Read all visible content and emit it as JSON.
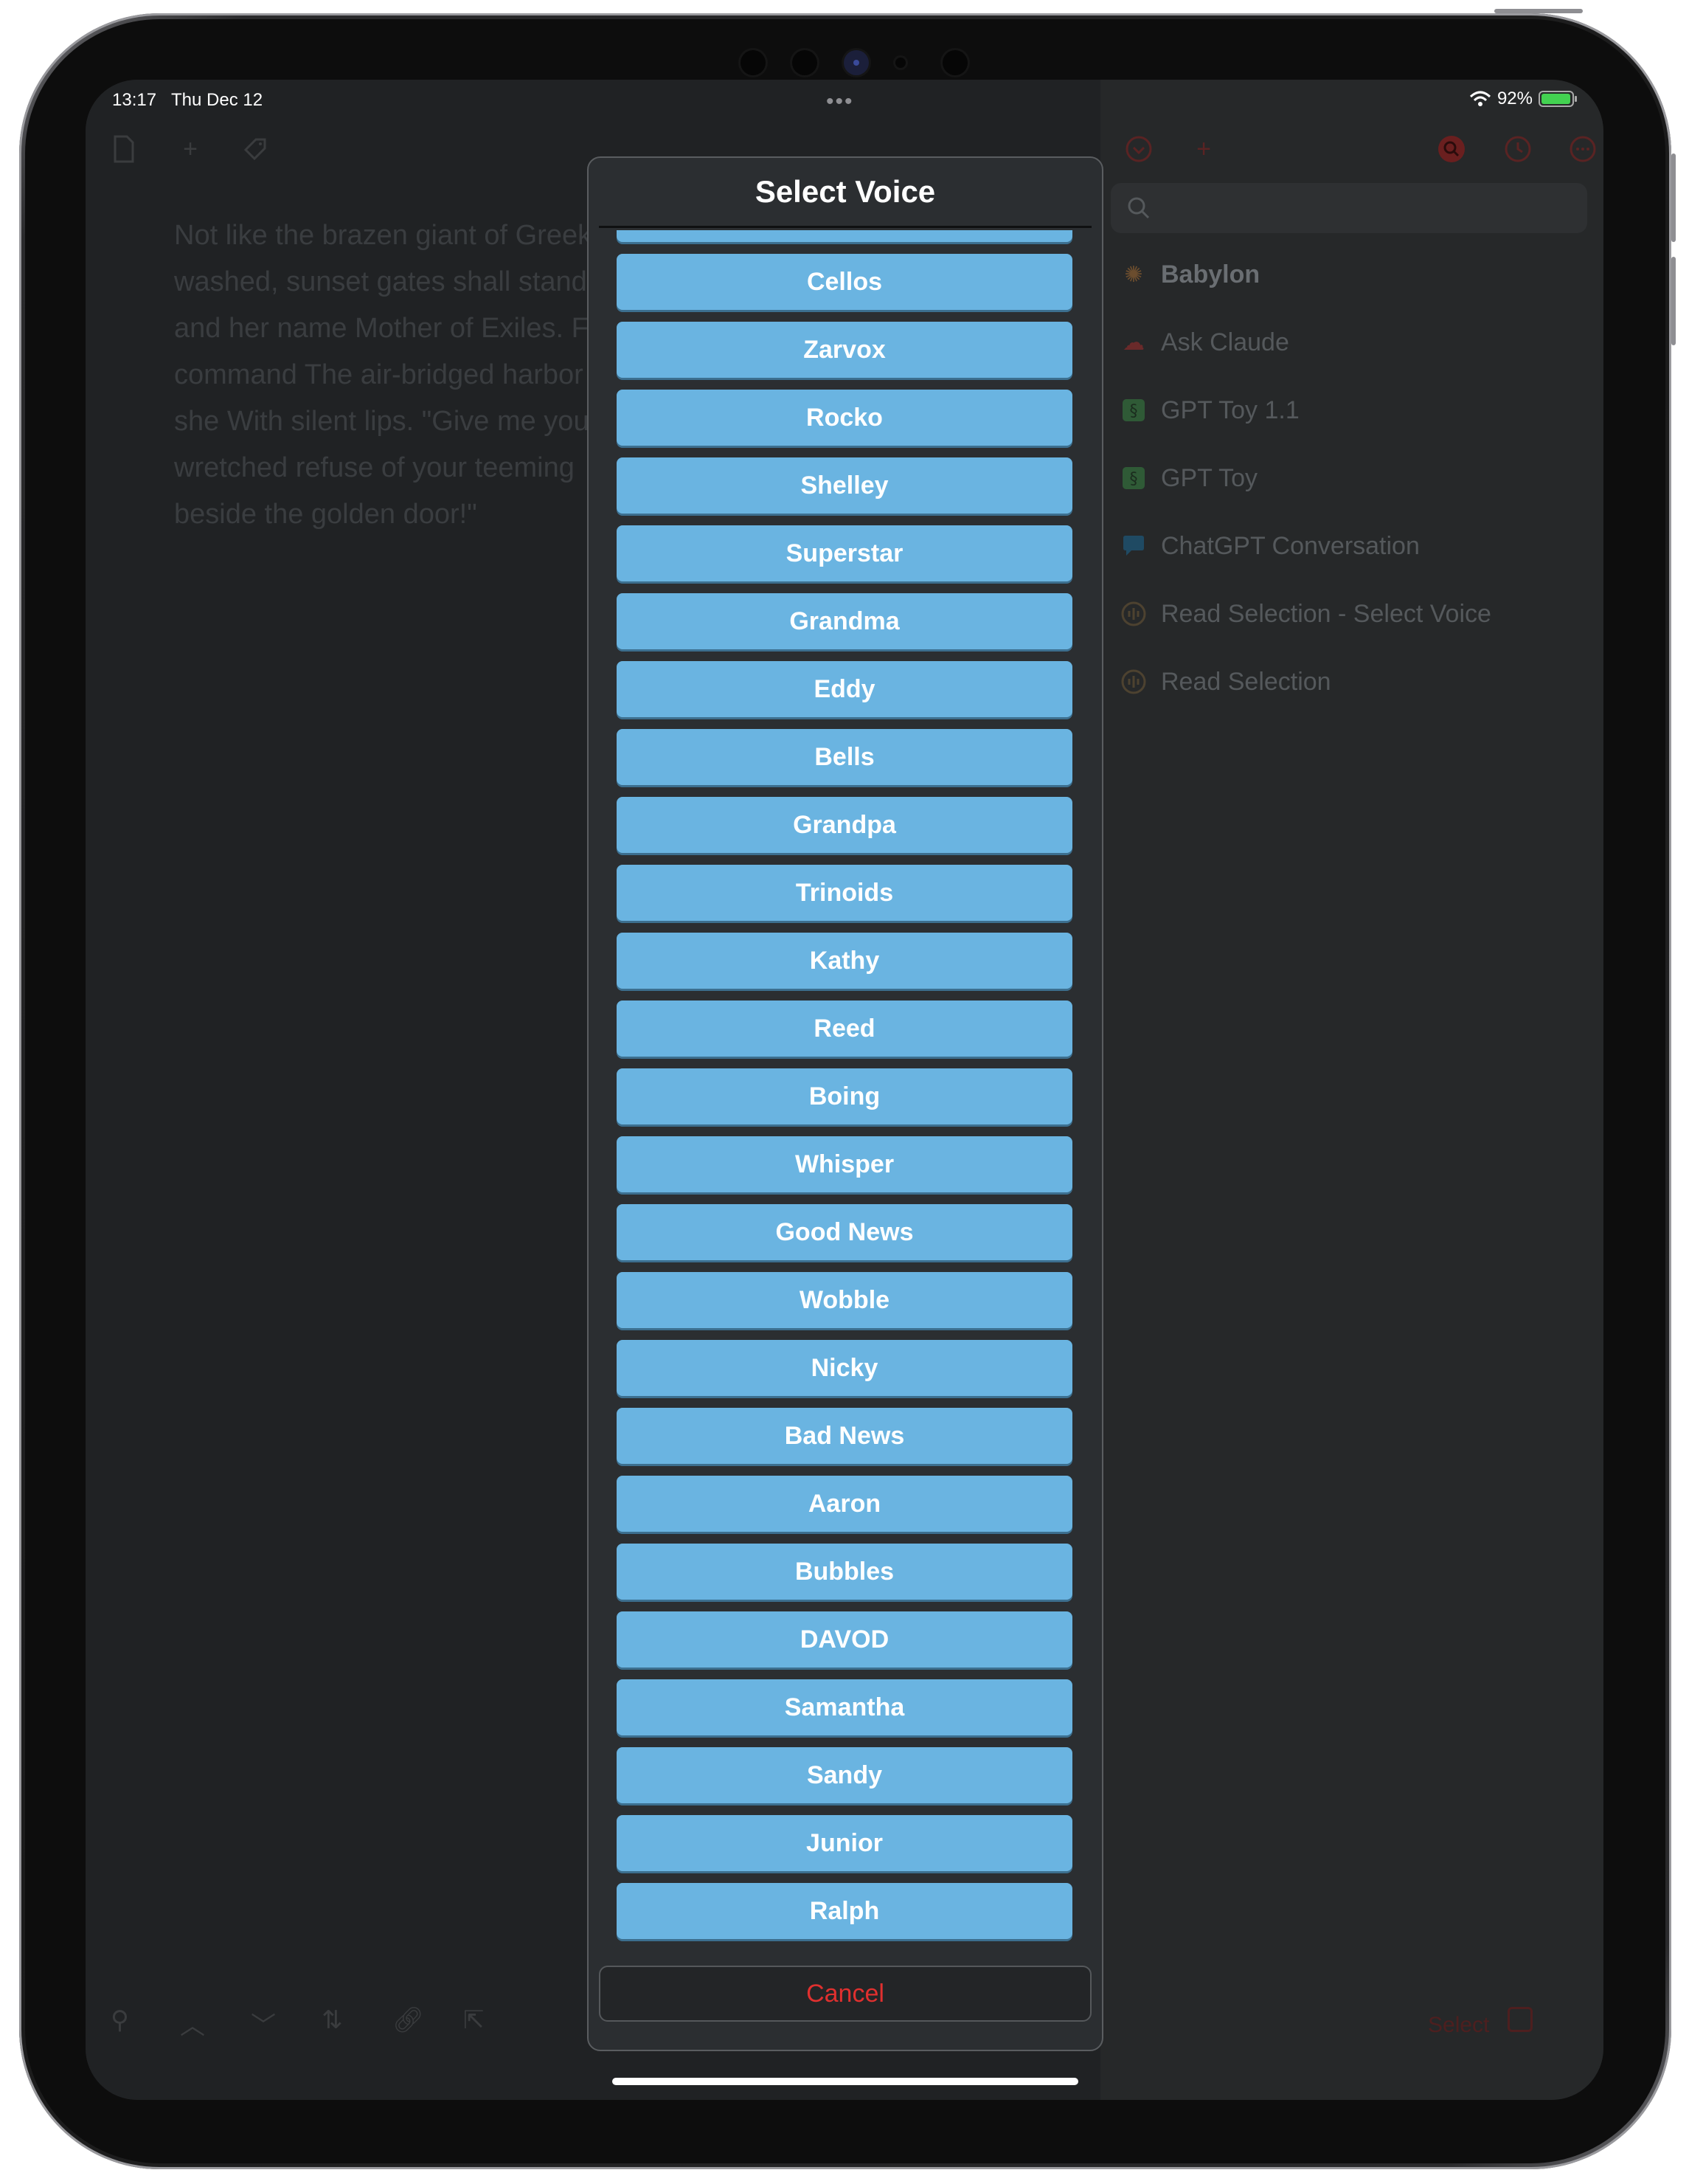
{
  "status_bar": {
    "time": "13:17",
    "date": "Thu Dec 12",
    "battery": "92%"
  },
  "editor": {
    "text": "Not like the brazen giant of Greek\nwashed, sunset gates shall stand\nand her name Mother of Exiles. F\ncommand The air-bridged harbor\nshe With silent lips. \"Give me you\nwretched refuse of your teeming\nbeside the golden door!\""
  },
  "sidebar": {
    "search_placeholder": "",
    "items": [
      {
        "label": "Babylon",
        "icon": "openai-icon"
      },
      {
        "label": "Ask Claude",
        "icon": "brain-icon"
      },
      {
        "label": "GPT Toy 1.1",
        "icon": "script-icon"
      },
      {
        "label": "GPT Toy",
        "icon": "script-icon"
      },
      {
        "label": "ChatGPT Conversation",
        "icon": "chat-bubble-icon"
      },
      {
        "label": "Read Selection - Select Voice",
        "icon": "waveform-icon"
      },
      {
        "label": "Read Selection",
        "icon": "waveform-icon"
      }
    ],
    "select_label": "Select"
  },
  "modal": {
    "title": "Select Voice",
    "voices": [
      "",
      "Cellos",
      "Zarvox",
      "Rocko",
      "Shelley",
      "Superstar",
      "Grandma",
      "Eddy",
      "Bells",
      "Grandpa",
      "Trinoids",
      "Kathy",
      "Reed",
      "Boing",
      "Whisper",
      "Good News",
      "Wobble",
      "Nicky",
      "Bad News",
      "Aaron",
      "Bubbles",
      "DAVOD",
      "Samantha",
      "Sandy",
      "Junior",
      "Ralph"
    ],
    "cancel_label": "Cancel"
  },
  "colors": {
    "voice_button": "#6ab4e1",
    "cancel_text": "#e0302f",
    "accent_red": "#c0392b"
  }
}
